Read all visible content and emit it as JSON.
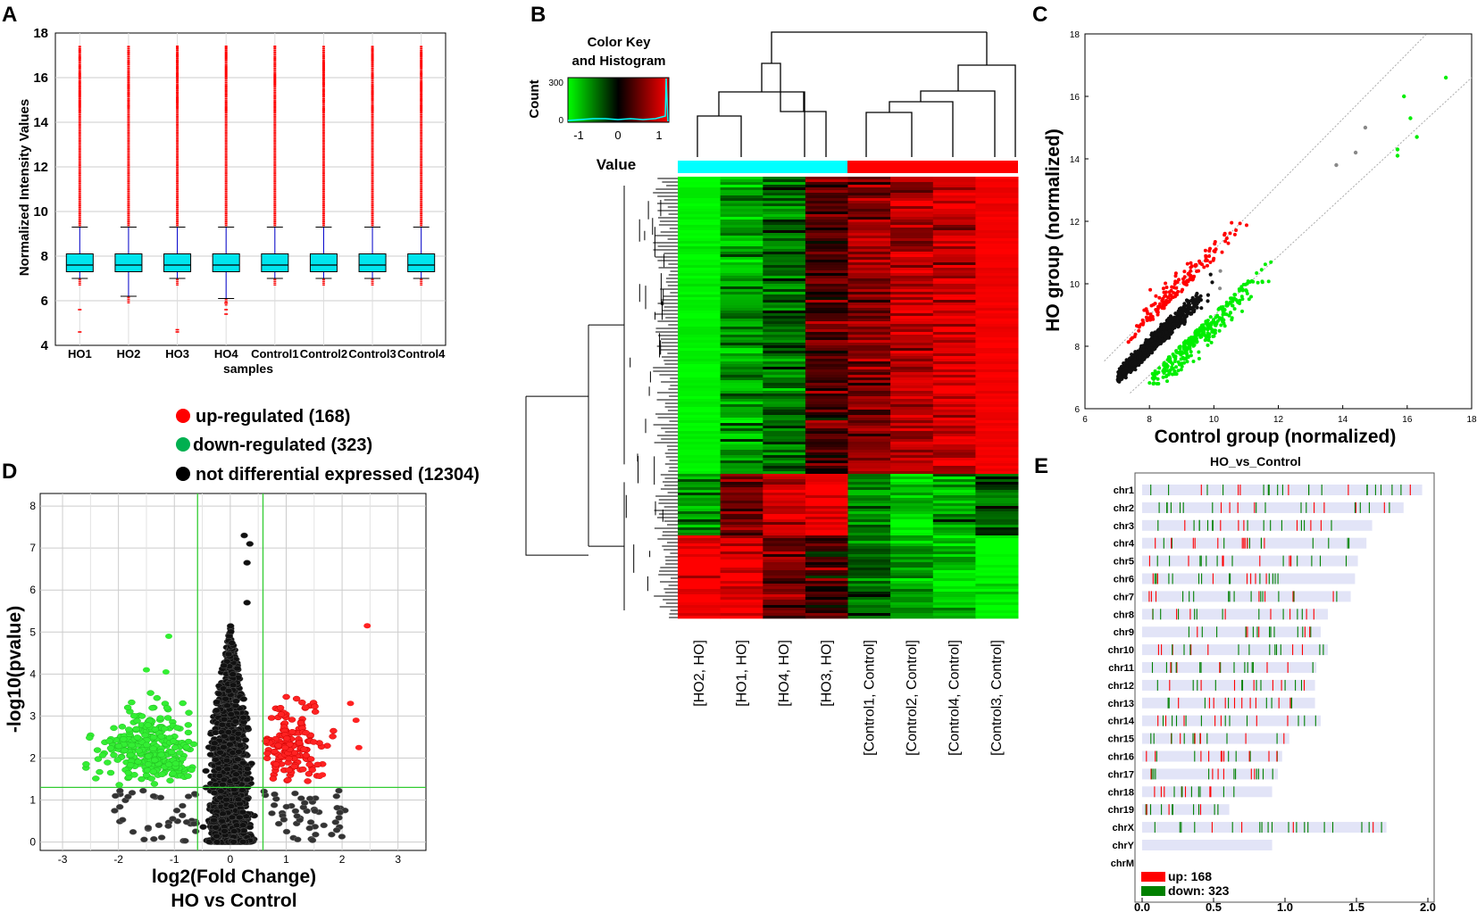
{
  "figure": {
    "panel_letters": [
      "A",
      "B",
      "C",
      "D",
      "E"
    ]
  },
  "chart_data": [
    {
      "id": "A",
      "type": "box",
      "ylabel": "Normalized Intensity Values",
      "xlabel": "samples",
      "categories": [
        "HO1",
        "HO2",
        "HO3",
        "HO4",
        "Control1",
        "Control2",
        "Control3",
        "Control4"
      ],
      "ylim": [
        4,
        18
      ],
      "yticks": [
        4,
        6,
        8,
        10,
        12,
        14,
        16,
        18
      ],
      "box": [
        {
          "q1": 7.3,
          "median": 7.6,
          "q3": 8.1,
          "wlo": 7.0,
          "whi": 9.3,
          "outlier_max": 17.4,
          "low_outliers": [
            5.6,
            4.6
          ]
        },
        {
          "q1": 7.3,
          "median": 7.6,
          "q3": 8.1,
          "wlo": 6.2,
          "whi": 9.3,
          "outlier_max": 17.4,
          "low_outliers": []
        },
        {
          "q1": 7.3,
          "median": 7.6,
          "q3": 8.1,
          "wlo": 7.0,
          "whi": 9.3,
          "outlier_max": 17.4,
          "low_outliers": [
            4.7,
            4.6
          ]
        },
        {
          "q1": 7.3,
          "median": 7.6,
          "q3": 8.1,
          "wlo": 6.1,
          "whi": 9.3,
          "outlier_max": 17.4,
          "low_outliers": [
            5.9,
            5.6,
            5.4
          ]
        },
        {
          "q1": 7.3,
          "median": 7.6,
          "q3": 8.1,
          "wlo": 7.0,
          "whi": 9.3,
          "outlier_max": 17.4,
          "low_outliers": []
        },
        {
          "q1": 7.3,
          "median": 7.6,
          "q3": 8.1,
          "wlo": 7.0,
          "whi": 9.3,
          "outlier_max": 17.4,
          "low_outliers": []
        },
        {
          "q1": 7.3,
          "median": 7.6,
          "q3": 8.1,
          "wlo": 7.0,
          "whi": 9.3,
          "outlier_max": 17.4,
          "low_outliers": []
        },
        {
          "q1": 7.3,
          "median": 7.6,
          "q3": 8.1,
          "wlo": 7.0,
          "whi": 9.3,
          "outlier_max": 17.4,
          "low_outliers": []
        }
      ],
      "colors": {
        "box": "#00e5ee",
        "whisker": "#0000cc",
        "outlier": "#ff0000"
      }
    },
    {
      "id": "B",
      "type": "heatmap",
      "color_key_title": "Color Key",
      "color_key_subtitle": "and Histogram",
      "count_label": "Count",
      "count_ticks": [
        "0",
        "300"
      ],
      "value_label": "Value",
      "value_ticks": [
        "-1",
        "0",
        "1"
      ],
      "columns": [
        "[HO2, HO]",
        "[HO1, HO]",
        "[HO4, HO]",
        "[HO3, HO]",
        "[Control1, Control]",
        "[Control2, Control]",
        "[Control4, Control]",
        "[Control3, Control]"
      ],
      "groups": [
        {
          "name": "HO",
          "color": "#00ffff",
          "n": 4
        },
        {
          "name": "Control",
          "color": "#ff0000",
          "n": 4
        }
      ],
      "block_means": [
        [
          -1.0,
          -0.6,
          -0.4,
          0.3,
          0.5,
          0.7,
          0.8,
          1.0
        ],
        [
          -0.6,
          0.4,
          0.8,
          1.0,
          -0.5,
          -0.9,
          -0.6,
          -0.3
        ],
        [
          1.0,
          0.9,
          0.5,
          0.2,
          -0.4,
          -0.6,
          -0.8,
          -1.0
        ]
      ],
      "block_fractions": [
        0.67,
        0.14,
        0.19
      ]
    },
    {
      "id": "C",
      "type": "scatter",
      "xlabel": "Control group (normalized)",
      "ylabel": "HO group (normalized)",
      "xlim": [
        6,
        18
      ],
      "ylim": [
        6,
        18
      ],
      "xticks": [
        6,
        8,
        10,
        12,
        14,
        16,
        18
      ],
      "yticks": [
        6,
        8,
        10,
        12,
        14,
        16,
        18
      ],
      "series": [
        {
          "name": "up",
          "color": "#ff0000",
          "n": 168
        },
        {
          "name": "down",
          "color": "#00cc00",
          "n": 323
        },
        {
          "name": "not differential",
          "color": "#000000",
          "n": 12304
        }
      ],
      "fold_lines": [
        1.5,
        0.667
      ]
    },
    {
      "id": "D",
      "type": "scatter",
      "title": "HO vs Control",
      "xlabel": "log2(Fold Change)",
      "ylabel": "-log10(pvalue)",
      "xlim": [
        -3.4,
        3.5
      ],
      "ylim": [
        -0.2,
        8.3
      ],
      "xticks": [
        -3,
        -2,
        -1,
        0,
        1,
        2,
        3
      ],
      "yticks": [
        0,
        1,
        2,
        3,
        4,
        5,
        6,
        7,
        8
      ],
      "thresholds": {
        "log2fc": [
          -0.585,
          0.585
        ],
        "neglog10p": 1.3
      },
      "legend": [
        {
          "label": "up-regulated (168)",
          "color": "#ff0000"
        },
        {
          "label": "down-regulated (323)",
          "color": "#00b050"
        },
        {
          "label": "not differential expressed (12304)",
          "color": "#000000"
        }
      ]
    },
    {
      "id": "E",
      "type": "bar",
      "title": "HO_vs_Control",
      "xlim": [
        0,
        2.0
      ],
      "xticks": [
        "0.0",
        "0.5",
        "1.0",
        "1.5",
        "2.0"
      ],
      "chromosomes": [
        "chr1",
        "chr2",
        "chr3",
        "chr4",
        "chr5",
        "chr6",
        "chr7",
        "chr8",
        "chr9",
        "chr10",
        "chr11",
        "chr12",
        "chr13",
        "chr14",
        "chr15",
        "chr16",
        "chr17",
        "chr18",
        "chr19",
        "chrX",
        "chrY",
        "chrM"
      ],
      "values": [
        1.96,
        1.83,
        1.61,
        1.57,
        1.51,
        1.49,
        1.46,
        1.3,
        1.25,
        1.3,
        1.22,
        1.21,
        1.21,
        1.25,
        1.03,
        0.98,
        0.95,
        0.91,
        0.61,
        1.71,
        0.91,
        0.0
      ],
      "legend": [
        {
          "label": "up: 168",
          "color": "#ff0000"
        },
        {
          "label": "down: 323",
          "color": "#008000"
        }
      ]
    }
  ]
}
